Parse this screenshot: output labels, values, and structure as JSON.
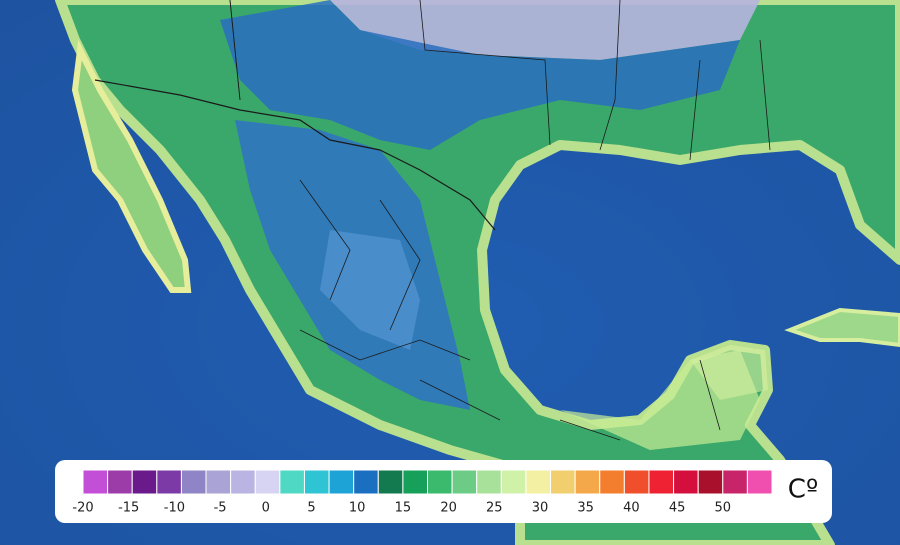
{
  "legend": {
    "unit": "Cº",
    "ticks": [
      -20,
      -15,
      -10,
      -5,
      0,
      5,
      10,
      15,
      20,
      25,
      30,
      35,
      40,
      45,
      50
    ],
    "colors": [
      "#c34fd6",
      "#9b3ca8",
      "#6a1a8a",
      "#7b3aa6",
      "#8f85c6",
      "#a9a3d6",
      "#b9b4e2",
      "#d6d4f2",
      "#4fd9c4",
      "#2fc4d4",
      "#1ea3d6",
      "#1a6fc1",
      "#127a4e",
      "#17a05a",
      "#3bba6e",
      "#6ccc86",
      "#a8e29a",
      "#cff2a8",
      "#f3f0a4",
      "#f2cf6e",
      "#f4a84a",
      "#f27e2e",
      "#f04f2c",
      "#ee2232",
      "#d40f3e",
      "#a8102c",
      "#c8246a",
      "#f04fb0"
    ]
  }
}
